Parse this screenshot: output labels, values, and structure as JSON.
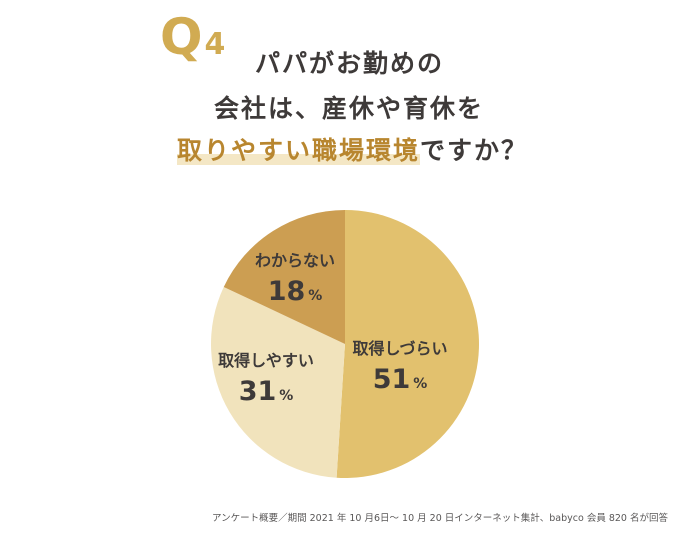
{
  "question": {
    "letter": "Q",
    "number": "4",
    "line1": "パパがお勤めの",
    "line2": "会社は、産休や育休を",
    "line3_highlight": "取りやすい職場環境",
    "line3_rest": "ですか？"
  },
  "chart_data": {
    "type": "pie",
    "slices": [
      {
        "label": "取得しづらい",
        "value": 51,
        "value_text": "51",
        "unit": "%",
        "color": "#e2c16e"
      },
      {
        "label": "取得しやすい",
        "value": 31,
        "value_text": "31",
        "unit": "%",
        "color": "#f1e3bc"
      },
      {
        "label": "わからない",
        "value": 18,
        "value_text": "18",
        "unit": "%",
        "color": "#cc9e52"
      }
    ]
  },
  "footnote": "アンケート概要／期間 2021 年 10 月6日～ 10 月 20 日インターネット集計、babyco 会員 820 名が回答"
}
